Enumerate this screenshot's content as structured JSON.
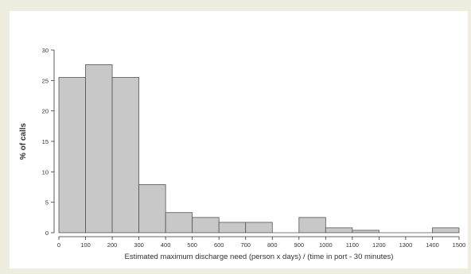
{
  "chart_data": {
    "type": "bar",
    "title": "",
    "xlabel": "Estimated maximum discharge need (person x days) / (time in port - 30 minutes)",
    "ylabel": "% of calls",
    "xlim": [
      0,
      1500
    ],
    "ylim": [
      0,
      30
    ],
    "x_ticks": [
      0,
      100,
      200,
      300,
      400,
      500,
      600,
      700,
      800,
      900,
      1000,
      1100,
      1200,
      1300,
      1400,
      1500
    ],
    "y_ticks": [
      0,
      5,
      10,
      15,
      20,
      25,
      30
    ],
    "bin_width": 100,
    "bins": [
      {
        "start": 0,
        "end": 100,
        "value": 25.5
      },
      {
        "start": 100,
        "end": 200,
        "value": 27.6
      },
      {
        "start": 200,
        "end": 300,
        "value": 25.5
      },
      {
        "start": 300,
        "end": 400,
        "value": 7.9
      },
      {
        "start": 400,
        "end": 500,
        "value": 3.3
      },
      {
        "start": 500,
        "end": 600,
        "value": 2.5
      },
      {
        "start": 600,
        "end": 700,
        "value": 1.7
      },
      {
        "start": 700,
        "end": 800,
        "value": 1.7
      },
      {
        "start": 800,
        "end": 900,
        "value": 0
      },
      {
        "start": 900,
        "end": 1000,
        "value": 2.5
      },
      {
        "start": 1000,
        "end": 1100,
        "value": 0.8
      },
      {
        "start": 1100,
        "end": 1200,
        "value": 0.4
      },
      {
        "start": 1200,
        "end": 1300,
        "value": 0
      },
      {
        "start": 1300,
        "end": 1400,
        "value": 0
      },
      {
        "start": 1400,
        "end": 1500,
        "value": 0.8
      }
    ],
    "grid": false,
    "colors": {
      "bar_fill": "#c8c8c8",
      "bar_stroke": "#555555",
      "axis": "#333333"
    }
  }
}
